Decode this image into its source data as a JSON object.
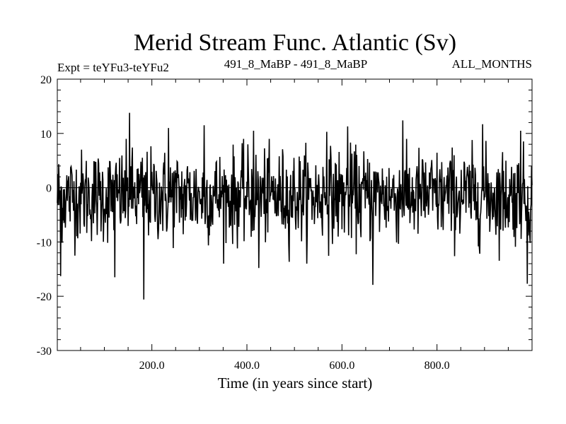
{
  "chart_data": {
    "type": "line",
    "title": "Merid Stream Func. Atlantic (Sv)",
    "subtitle_left": "Expt = teYFu3-teYFu2",
    "subtitle_center": "491_8_MaBP - 491_8_MaBP",
    "subtitle_right": "ALL_MONTHS",
    "xlabel": "Time (in years since start)",
    "ylabel": "",
    "xlim": [
      1,
      1000
    ],
    "ylim": [
      -30,
      20
    ],
    "x_ticks": [
      200,
      400,
      600,
      800
    ],
    "x_tick_labels": [
      "200.0",
      "400.0",
      "600.0",
      "800.0"
    ],
    "y_ticks": [
      20,
      10,
      0,
      -10,
      -20,
      -30
    ],
    "y_tick_labels": [
      "20",
      "10",
      "0",
      "-10",
      "-20",
      "-30"
    ],
    "zero_line": true,
    "series": [
      {
        "name": "Merid Stream Func. Atlantic",
        "color": "#000000",
        "x_start": 1,
        "x_step": 1,
        "count": 1000,
        "mean": -1.5,
        "std_dev": 4.2,
        "notable_points": [
          {
            "x": 153,
            "y": 13.8
          },
          {
            "x": 183,
            "y": -20.6
          },
          {
            "x": 122,
            "y": -16.5
          },
          {
            "x": 8,
            "y": -16.3
          },
          {
            "x": 665,
            "y": -17.9
          },
          {
            "x": 728,
            "y": 12.4
          },
          {
            "x": 990,
            "y": -17.7
          },
          {
            "x": 976,
            "y": 10.5
          },
          {
            "x": 310,
            "y": 11.5
          },
          {
            "x": 235,
            "y": 11.0
          },
          {
            "x": 612,
            "y": 11.3
          },
          {
            "x": 414,
            "y": 10.5
          },
          {
            "x": 425,
            "y": -14.8
          },
          {
            "x": 568,
            "y": 10.3
          },
          {
            "x": 896,
            "y": 11.7
          }
        ]
      }
    ]
  }
}
